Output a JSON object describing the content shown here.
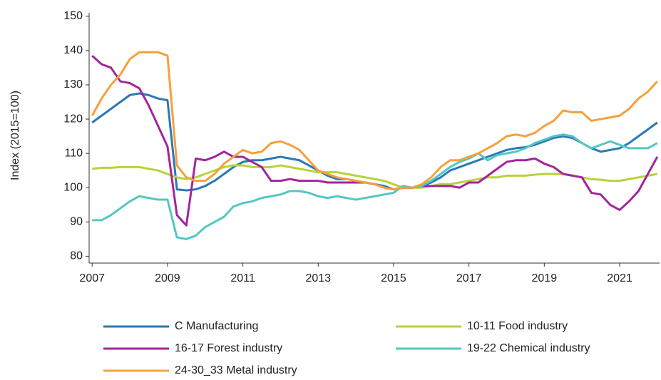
{
  "chart_data": {
    "type": "line",
    "y_label": "Index (2015=100)",
    "x": [
      2007,
      2007.25,
      2007.5,
      2007.75,
      2008,
      2008.25,
      2008.5,
      2008.75,
      2009,
      2009.25,
      2009.5,
      2009.75,
      2010,
      2010.25,
      2010.5,
      2010.75,
      2011,
      2011.25,
      2011.5,
      2011.75,
      2012,
      2012.25,
      2012.5,
      2012.75,
      2013,
      2013.25,
      2013.5,
      2013.75,
      2014,
      2014.25,
      2014.5,
      2014.75,
      2015,
      2015.25,
      2015.5,
      2015.75,
      2016,
      2016.25,
      2016.5,
      2016.75,
      2017,
      2017.25,
      2017.5,
      2017.75,
      2018,
      2018.25,
      2018.5,
      2018.75,
      2019,
      2019.25,
      2019.5,
      2019.75,
      2020,
      2020.25,
      2020.5,
      2020.75,
      2021,
      2021.25,
      2021.5,
      2021.75,
      2022
    ],
    "series": [
      {
        "name": "C Manufacturing",
        "color": "#2a78b5",
        "values": [
          119,
          121,
          123,
          125,
          127,
          127.5,
          127,
          126,
          125.5,
          99.5,
          99.2,
          99.5,
          100.5,
          102,
          104,
          106,
          107.5,
          108,
          108,
          108.5,
          109,
          108.5,
          108,
          106.5,
          105,
          103.5,
          102.5,
          102.5,
          102,
          101.5,
          101,
          100.5,
          99.5,
          100,
          100,
          100.5,
          101.5,
          103,
          105,
          106,
          107,
          108,
          109,
          110,
          111,
          111.5,
          111.8,
          112.5,
          113.5,
          114.5,
          115,
          114.5,
          113,
          111.5,
          110.5,
          111,
          111.5,
          113,
          115,
          117,
          119
        ]
      },
      {
        "name": "10-11 Food industry",
        "color": "#b7d33a",
        "values": [
          105.5,
          105.8,
          105.8,
          106,
          106,
          106,
          105.5,
          105,
          104,
          103,
          102.5,
          103,
          104,
          105,
          106,
          106.5,
          106.5,
          106,
          106,
          106,
          106.5,
          106,
          105.5,
          105,
          104.5,
          104.5,
          104.5,
          104,
          103.5,
          103,
          102.5,
          102,
          101,
          100,
          100,
          100,
          100.5,
          101,
          101,
          101.5,
          102,
          102.5,
          103,
          103,
          103.5,
          103.5,
          103.5,
          103.8,
          104,
          104,
          104,
          103.5,
          103,
          102.5,
          102.3,
          102,
          102,
          102.5,
          103,
          103.5,
          104
        ]
      },
      {
        "name": "16-17 Forest industry",
        "color": "#a2259c",
        "values": [
          138.5,
          136,
          135,
          131,
          130.5,
          129,
          124,
          118,
          112,
          92,
          89,
          108.5,
          108,
          109,
          110.5,
          109,
          109,
          107.5,
          106,
          102,
          102,
          102.5,
          102,
          102,
          102,
          101.5,
          101.5,
          101.5,
          101.5,
          101.5,
          101,
          100,
          99.5,
          100,
          100,
          100.5,
          100.5,
          100.5,
          100.5,
          100,
          101.5,
          101.5,
          103.5,
          105.5,
          107.5,
          108,
          108,
          108.5,
          107,
          106,
          104,
          103.5,
          103,
          98.5,
          98,
          95,
          93.5,
          96,
          99,
          104,
          109
        ]
      },
      {
        "name": "19-22 Chemical industry",
        "color": "#53c7c4",
        "values": [
          90.5,
          90.5,
          92,
          94,
          96,
          97.5,
          97,
          96.5,
          96.5,
          85.5,
          85,
          86,
          88.5,
          90,
          91.5,
          94.5,
          95.5,
          96,
          97,
          97.5,
          98,
          99,
          99,
          98.5,
          97.5,
          97,
          97.5,
          97,
          96.5,
          97,
          97.5,
          98,
          98.5,
          100.5,
          100,
          100.5,
          102,
          104,
          106,
          107.5,
          108.5,
          110,
          108,
          109.5,
          110,
          110.5,
          111.5,
          113,
          114,
          115,
          115.5,
          115,
          113,
          111.5,
          112.5,
          113.5,
          112.5,
          111.5,
          111.5,
          111.5,
          113
        ]
      },
      {
        "name": "24-30_33 Metal industry",
        "color": "#f6a03c",
        "values": [
          121,
          126,
          130,
          133,
          137.5,
          139.5,
          139.5,
          139.5,
          138.5,
          106.5,
          103,
          102,
          102,
          104,
          107,
          109,
          111,
          110,
          110.5,
          113,
          113.5,
          112.5,
          111,
          108,
          105,
          104,
          103,
          102.5,
          102,
          101.5,
          101,
          100,
          99.5,
          100,
          100,
          101,
          103,
          106,
          108,
          108,
          109,
          110,
          111.5,
          113,
          115,
          115.5,
          115,
          116,
          118,
          119.5,
          122.5,
          122,
          122,
          119.5,
          120,
          120.5,
          121,
          123,
          126,
          128,
          131
        ]
      }
    ],
    "xlim": [
      2006.92,
      2022.06
    ],
    "xticks": [
      2007,
      2009,
      2011,
      2013,
      2015,
      2017,
      2019,
      2021
    ],
    "ylim": [
      78,
      151
    ],
    "yticks": [
      80,
      90,
      100,
      110,
      120,
      130,
      140,
      150
    ],
    "grid": false
  }
}
